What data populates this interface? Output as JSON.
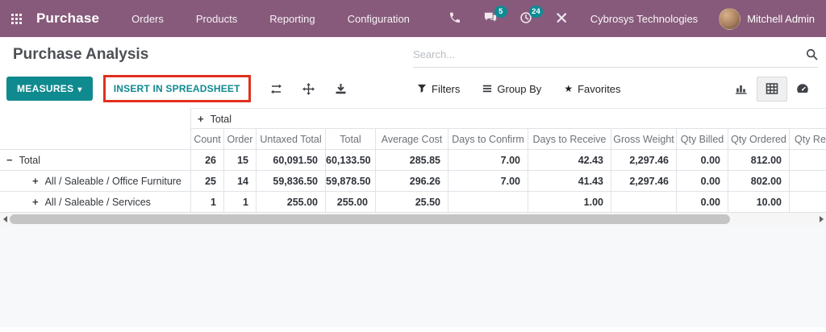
{
  "nav": {
    "app_name": "Purchase",
    "menu_items": [
      "Orders",
      "Products",
      "Reporting",
      "Configuration"
    ],
    "messages_badge": "5",
    "activities_badge": "24",
    "company": "Cybrosys Technologies",
    "user": "Mitchell Admin"
  },
  "header": {
    "title": "Purchase Analysis",
    "search_placeholder": "Search..."
  },
  "toolbar": {
    "measures_label": "MEASURES",
    "measures_caret": "▾",
    "insert_label": "INSERT IN SPREADSHEET",
    "filters_label": "Filters",
    "group_by_label": "Group By",
    "favorites_label": "Favorites",
    "favorites_star": "★"
  },
  "pivot": {
    "col_group_expander": "+",
    "col_group_header": "Total",
    "columns": [
      "Count",
      "Order",
      "Untaxed Total",
      "Total",
      "Average Cost",
      "Days to Confirm",
      "Days to Receive",
      "Gross Weight",
      "Qty Billed",
      "Qty Ordered",
      "Qty Re"
    ],
    "rows": [
      {
        "expander": "−",
        "indent": 0,
        "label": "Total",
        "values": [
          "26",
          "15",
          "60,091.50",
          "60,133.50",
          "285.85",
          "7.00",
          "42.43",
          "2,297.46",
          "0.00",
          "812.00",
          ""
        ]
      },
      {
        "expander": "+",
        "indent": 1,
        "label": "All / Saleable / Office Furniture",
        "values": [
          "25",
          "14",
          "59,836.50",
          "59,878.50",
          "296.26",
          "7.00",
          "41.43",
          "2,297.46",
          "0.00",
          "802.00",
          ""
        ]
      },
      {
        "expander": "+",
        "indent": 1,
        "label": "All / Saleable / Services",
        "values": [
          "1",
          "1",
          "255.00",
          "255.00",
          "25.50",
          "",
          "1.00",
          "",
          "0.00",
          "10.00",
          ""
        ]
      }
    ]
  },
  "colors": {
    "nav_bg": "#875a7b",
    "accent_teal": "#0f8a8f",
    "badge_teal": "#0d8b94",
    "annotation_red": "#e0301e",
    "table_border": "#dfe3e8"
  }
}
